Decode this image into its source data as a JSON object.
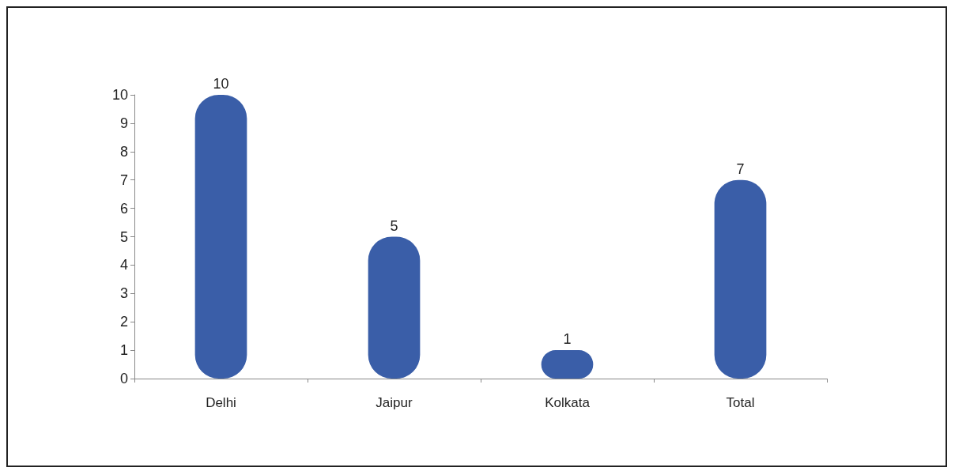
{
  "chart_data": {
    "type": "bar",
    "categories": [
      "Delhi",
      "Jaipur",
      "Kolkata",
      "Total"
    ],
    "values": [
      10,
      5,
      1,
      7
    ],
    "color": "#3a5ea8",
    "ylim": [
      0,
      10
    ],
    "yticks": [
      0,
      1,
      2,
      3,
      4,
      5,
      6,
      7,
      8,
      9,
      10
    ],
    "grid": false,
    "data_labels": true
  }
}
